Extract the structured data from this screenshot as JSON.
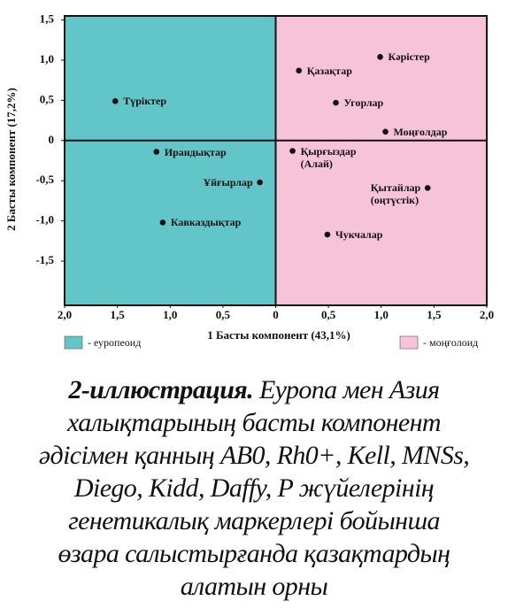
{
  "chart_data": {
    "type": "scatter",
    "x_label": "1 Басты компонент (43,1%)",
    "y_label": "2 Басты компонент (17,2%)",
    "categories": [
      "Түріктер",
      "Ирандықтар",
      "Кавказдықтар",
      "Ұйғырлар",
      "Қазақтар",
      "Кәрістер",
      "Угорлар",
      "Моңғолдар",
      "Қырғыздар\n(Алай)",
      "Қытайлар\n(оңтүстік)",
      "Чукчалар"
    ],
    "x": [
      -1.52,
      -1.13,
      -1.07,
      -0.15,
      0.22,
      0.99,
      0.57,
      1.04,
      0.16,
      1.44,
      0.49
    ],
    "values": [
      0.49,
      -0.14,
      -1.02,
      -0.52,
      0.87,
      1.04,
      0.47,
      0.11,
      -0.13,
      -0.59,
      -1.17
    ],
    "color": "#111111",
    "xlim": [
      -2,
      2
    ],
    "ylim": [
      -2.05,
      1.55
    ],
    "xticks": [
      {
        "value": -2,
        "label": "2,0"
      },
      {
        "value": -1.5,
        "label": "1,5"
      },
      {
        "value": -1,
        "label": "1,0"
      },
      {
        "value": -0.5,
        "label": "0,5"
      },
      0,
      {
        "value": 0.5,
        "label": "0,5"
      },
      {
        "value": 1,
        "label": "1,0"
      },
      {
        "value": 1.5,
        "label": "1,5"
      },
      {
        "value": 2,
        "label": "2,0"
      }
    ],
    "yticks": [
      {
        "value": 1.5,
        "label": "1,5"
      },
      {
        "value": 1,
        "label": "1,0"
      },
      {
        "value": 0.5,
        "label": "0,5"
      },
      0,
      {
        "value": -0.5,
        "label": "-0,5"
      },
      {
        "value": -1,
        "label": "-1,0"
      },
      {
        "value": -1.5,
        "label": "-1,5"
      }
    ],
    "legend": [
      {
        "label": "- еуропеоид",
        "color": "#62c5c7"
      },
      {
        "label": "- моңғолоид",
        "color": "#f7c3d8"
      }
    ]
  },
  "caption": {
    "label": "2-иллюстрация.",
    "lines": [
      "Еуропа мен Азия",
      "халықтарының басты компонент",
      "әдісімен  қанның AB0, Rh0+, Kell, MNSs,",
      "Diego, Kidd, Daffy, P  жүйелерінің",
      "генетикалық маркерлері бойынша",
      "өзара салыстырғанда қазақтардың",
      "алатын орны"
    ]
  }
}
